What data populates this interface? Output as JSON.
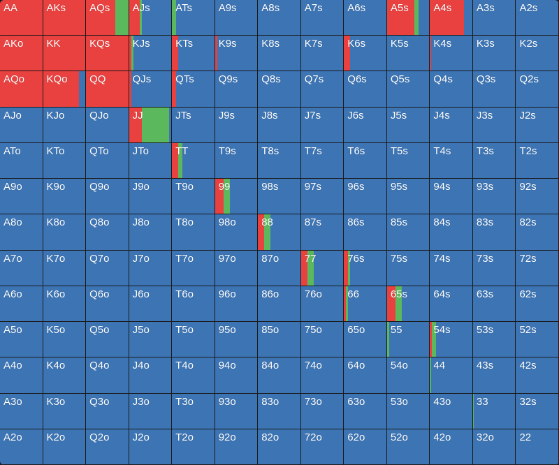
{
  "colors": {
    "fold": "#3c74b4",
    "raise": "#e8413f",
    "call": "#5cb85c",
    "border": "#1a1a1a"
  },
  "legend_order": [
    "raise",
    "call",
    "fold"
  ],
  "rows": [
    [
      {
        "hand": "AA",
        "raise": 1,
        "call": 0
      },
      {
        "hand": "AKs",
        "raise": 1,
        "call": 0
      },
      {
        "hand": "AQs",
        "raise": 0.7,
        "call": 0.3
      },
      {
        "hand": "AJs",
        "raise": 0.25,
        "call": 0.05
      },
      {
        "hand": "ATs",
        "raise": 0,
        "call": 0.1
      },
      {
        "hand": "A9s"
      },
      {
        "hand": "A8s"
      },
      {
        "hand": "A7s"
      },
      {
        "hand": "A6s"
      },
      {
        "hand": "A5s",
        "raise": 0.65,
        "call": 0.1
      },
      {
        "hand": "A4s",
        "raise": 0.8,
        "call": 0
      },
      {
        "hand": "A3s"
      },
      {
        "hand": "A2s"
      }
    ],
    [
      {
        "hand": "AKo",
        "raise": 1,
        "call": 0
      },
      {
        "hand": "KK",
        "raise": 1,
        "call": 0
      },
      {
        "hand": "KQs",
        "raise": 1,
        "call": 0
      },
      {
        "hand": "KJs",
        "raise": 0.05,
        "call": 0.05
      },
      {
        "hand": "KTs",
        "raise": 0.15,
        "call": 0
      },
      {
        "hand": "K9s",
        "raise": 0.05,
        "call": 0
      },
      {
        "hand": "K8s"
      },
      {
        "hand": "K7s"
      },
      {
        "hand": "K6s",
        "raise": 0.15,
        "call": 0
      },
      {
        "hand": "K5s"
      },
      {
        "hand": "K4s",
        "raise": 0.02,
        "call": 0
      },
      {
        "hand": "K3s"
      },
      {
        "hand": "K2s"
      }
    ],
    [
      {
        "hand": "AQo",
        "raise": 1,
        "call": 0
      },
      {
        "hand": "KQo",
        "raise": 0.85,
        "call": 0
      },
      {
        "hand": "QQ",
        "raise": 1,
        "call": 0
      },
      {
        "hand": "QJs",
        "raise": 0.05,
        "call": 0
      },
      {
        "hand": "QTs",
        "raise": 0.1,
        "call": 0
      },
      {
        "hand": "Q9s"
      },
      {
        "hand": "Q8s"
      },
      {
        "hand": "Q7s"
      },
      {
        "hand": "Q6s"
      },
      {
        "hand": "Q5s"
      },
      {
        "hand": "Q4s"
      },
      {
        "hand": "Q3s"
      },
      {
        "hand": "Q2s"
      }
    ],
    [
      {
        "hand": "AJo"
      },
      {
        "hand": "KJo"
      },
      {
        "hand": "QJo"
      },
      {
        "hand": "JJ",
        "raise": 0.3,
        "call": 0.65
      },
      {
        "hand": "JTs"
      },
      {
        "hand": "J9s"
      },
      {
        "hand": "J8s"
      },
      {
        "hand": "J7s"
      },
      {
        "hand": "J6s"
      },
      {
        "hand": "J5s"
      },
      {
        "hand": "J4s"
      },
      {
        "hand": "J3s"
      },
      {
        "hand": "J2s"
      }
    ],
    [
      {
        "hand": "ATo"
      },
      {
        "hand": "KTo"
      },
      {
        "hand": "QTo"
      },
      {
        "hand": "JTo"
      },
      {
        "hand": "TT",
        "raise": 0.15,
        "call": 0.1
      },
      {
        "hand": "T9s"
      },
      {
        "hand": "T8s"
      },
      {
        "hand": "T7s"
      },
      {
        "hand": "T6s"
      },
      {
        "hand": "T5s"
      },
      {
        "hand": "T4s"
      },
      {
        "hand": "T3s"
      },
      {
        "hand": "T2s"
      }
    ],
    [
      {
        "hand": "A9o"
      },
      {
        "hand": "K9o"
      },
      {
        "hand": "Q9o"
      },
      {
        "hand": "J9o"
      },
      {
        "hand": "T9o"
      },
      {
        "hand": "99",
        "raise": 0.2,
        "call": 0.15
      },
      {
        "hand": "98s"
      },
      {
        "hand": "97s"
      },
      {
        "hand": "96s"
      },
      {
        "hand": "95s"
      },
      {
        "hand": "94s"
      },
      {
        "hand": "93s"
      },
      {
        "hand": "92s"
      }
    ],
    [
      {
        "hand": "A8o"
      },
      {
        "hand": "K8o"
      },
      {
        "hand": "Q8o"
      },
      {
        "hand": "J8o"
      },
      {
        "hand": "T8o"
      },
      {
        "hand": "98o"
      },
      {
        "hand": "88",
        "raise": 0.15,
        "call": 0.15
      },
      {
        "hand": "87s"
      },
      {
        "hand": "86s"
      },
      {
        "hand": "85s"
      },
      {
        "hand": "84s"
      },
      {
        "hand": "83s"
      },
      {
        "hand": "82s"
      }
    ],
    [
      {
        "hand": "A7o"
      },
      {
        "hand": "K7o"
      },
      {
        "hand": "Q7o"
      },
      {
        "hand": "J7o"
      },
      {
        "hand": "T7o"
      },
      {
        "hand": "97o"
      },
      {
        "hand": "87o"
      },
      {
        "hand": "77",
        "raise": 0.15,
        "call": 0.15
      },
      {
        "hand": "76s",
        "raise": 0.1,
        "call": 0.05
      },
      {
        "hand": "75s"
      },
      {
        "hand": "74s"
      },
      {
        "hand": "73s"
      },
      {
        "hand": "72s"
      }
    ],
    [
      {
        "hand": "A6o"
      },
      {
        "hand": "K6o"
      },
      {
        "hand": "Q6o"
      },
      {
        "hand": "J6o"
      },
      {
        "hand": "T6o"
      },
      {
        "hand": "96o"
      },
      {
        "hand": "86o"
      },
      {
        "hand": "76o"
      },
      {
        "hand": "66",
        "raise": 0.05,
        "call": 0.05
      },
      {
        "hand": "65s",
        "raise": 0.2,
        "call": 0.15
      },
      {
        "hand": "64s"
      },
      {
        "hand": "63s"
      },
      {
        "hand": "62s"
      }
    ],
    [
      {
        "hand": "A5o"
      },
      {
        "hand": "K5o"
      },
      {
        "hand": "Q5o"
      },
      {
        "hand": "J5o"
      },
      {
        "hand": "T5o"
      },
      {
        "hand": "95o"
      },
      {
        "hand": "85o"
      },
      {
        "hand": "75o"
      },
      {
        "hand": "65o"
      },
      {
        "hand": "55",
        "raise": 0,
        "call": 0.05
      },
      {
        "hand": "54s",
        "raise": 0.05,
        "call": 0.1
      },
      {
        "hand": "53s"
      },
      {
        "hand": "52s"
      }
    ],
    [
      {
        "hand": "A4o"
      },
      {
        "hand": "K4o"
      },
      {
        "hand": "Q4o"
      },
      {
        "hand": "J4o"
      },
      {
        "hand": "T4o"
      },
      {
        "hand": "94o"
      },
      {
        "hand": "84o"
      },
      {
        "hand": "74o"
      },
      {
        "hand": "64o"
      },
      {
        "hand": "54o"
      },
      {
        "hand": "44",
        "raise": 0,
        "call": 0.02
      },
      {
        "hand": "43s"
      },
      {
        "hand": "42s"
      }
    ],
    [
      {
        "hand": "A3o"
      },
      {
        "hand": "K3o"
      },
      {
        "hand": "Q3o"
      },
      {
        "hand": "J3o"
      },
      {
        "hand": "T3o"
      },
      {
        "hand": "93o"
      },
      {
        "hand": "83o"
      },
      {
        "hand": "73o"
      },
      {
        "hand": "63o"
      },
      {
        "hand": "53o"
      },
      {
        "hand": "43o"
      },
      {
        "hand": "33",
        "raise": 0,
        "call": 0.02
      },
      {
        "hand": "32s"
      }
    ],
    [
      {
        "hand": "A2o"
      },
      {
        "hand": "K2o"
      },
      {
        "hand": "Q2o"
      },
      {
        "hand": "J2o"
      },
      {
        "hand": "T2o"
      },
      {
        "hand": "92o"
      },
      {
        "hand": "82o"
      },
      {
        "hand": "72o"
      },
      {
        "hand": "62o"
      },
      {
        "hand": "52o"
      },
      {
        "hand": "42o"
      },
      {
        "hand": "32o"
      },
      {
        "hand": "22"
      }
    ]
  ]
}
